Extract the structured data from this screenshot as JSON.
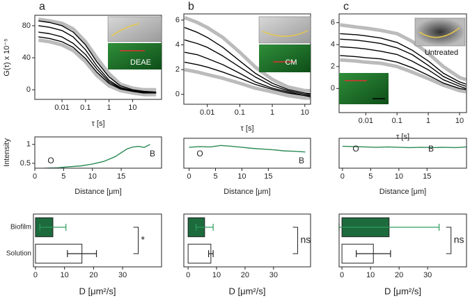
{
  "chart_data": [
    {
      "type": "line",
      "title": "a",
      "ylabel": "G(τ) x 10⁻⁵",
      "xlabel": "τ [s]",
      "inset_label": "DEAE",
      "xscale": "log",
      "x": [
        0.001,
        0.003,
        0.01,
        0.03,
        0.1,
        0.3,
        1,
        3,
        10,
        30,
        100
      ],
      "series": [
        {
          "color": "#bbbbbb",
          "values": [
            88,
            86,
            83,
            76,
            60,
            40,
            20,
            7,
            2,
            0,
            0
          ]
        },
        {
          "color": "#bbbbbb",
          "values": [
            62,
            60,
            56,
            49,
            35,
            18,
            5,
            -1,
            -4,
            -6,
            -6
          ]
        },
        {
          "color": "#000000",
          "values": [
            86,
            84,
            80,
            72,
            56,
            35,
            16,
            5,
            0,
            -2,
            -3
          ]
        },
        {
          "color": "#000000",
          "values": [
            80,
            78,
            74,
            66,
            50,
            30,
            12,
            3,
            -1,
            -3,
            -3
          ]
        },
        {
          "color": "#000000",
          "values": [
            72,
            70,
            66,
            58,
            44,
            26,
            10,
            2,
            -2,
            -4,
            -4
          ]
        },
        {
          "color": "#000000",
          "values": [
            66,
            64,
            60,
            53,
            39,
            22,
            8,
            1,
            -2,
            -4,
            -4
          ]
        }
      ],
      "xlim": [
        0.0007,
        170
      ],
      "ylim": [
        -12,
        93
      ],
      "xticks": [
        0.01,
        0.1,
        1,
        10
      ],
      "yticks": [
        0,
        40,
        80
      ]
    },
    {
      "type": "line",
      "ylabel": "Intensity",
      "xlabel": "Distance [μm]",
      "annotations": [
        "O",
        "B"
      ],
      "x": [
        0,
        2,
        4,
        6,
        8,
        10,
        12,
        14,
        15,
        16,
        17,
        18,
        19,
        20
      ],
      "series": [
        {
          "color": "#2a8a55",
          "values": [
            0.35,
            0.37,
            0.38,
            0.41,
            0.43,
            0.48,
            0.55,
            0.68,
            0.78,
            0.88,
            0.93,
            0.95,
            0.92,
            1.0
          ]
        }
      ],
      "xlim": [
        0,
        22
      ],
      "ylim": [
        0.37,
        1.2
      ],
      "xticks": [
        0,
        5,
        10,
        15
      ],
      "yticks": [
        0.5,
        1.0
      ]
    },
    {
      "type": "bar",
      "orientation": "horizontal",
      "xlabel": "D [μm²/s]",
      "annotations": [
        "*"
      ],
      "categories": [
        "Biofilm",
        "Solution"
      ],
      "values": [
        6,
        16
      ],
      "errors": [
        4.5,
        5
      ],
      "colors": [
        "#1d6b3d",
        "#ffffff"
      ],
      "error_colors": [
        "#2e9c5c",
        "#222222"
      ],
      "xlim": [
        -0.7,
        43.4
      ],
      "xticks": [
        0,
        10,
        20,
        30
      ]
    },
    {
      "type": "line",
      "title": "b",
      "xlabel": "τ [s]",
      "inset_label": "CM",
      "xscale": "log",
      "x": [
        0.002,
        0.005,
        0.01,
        0.03,
        0.1,
        0.3,
        1,
        3,
        10,
        15
      ],
      "series": [
        {
          "color": "#bbbbbb",
          "values": [
            6.2,
            5.8,
            5.4,
            4.6,
            3.4,
            2.2,
            1.2,
            0.6,
            0.3,
            0.3
          ]
        },
        {
          "color": "#bbbbbb",
          "values": [
            2.0,
            1.8,
            1.6,
            1.3,
            0.9,
            0.5,
            0.2,
            -0.1,
            -0.3,
            -0.3
          ]
        },
        {
          "color": "#000000",
          "values": [
            5.4,
            5.0,
            4.6,
            3.8,
            2.7,
            1.7,
            0.9,
            0.4,
            0.1,
            0.05
          ]
        },
        {
          "color": "#000000",
          "values": [
            4.4,
            4.1,
            3.8,
            3.1,
            2.2,
            1.4,
            0.7,
            0.3,
            0.0,
            0
          ]
        },
        {
          "color": "#000000",
          "values": [
            3.4,
            3.2,
            2.9,
            2.4,
            1.7,
            1.0,
            0.5,
            0.2,
            -0.1,
            -0.1
          ]
        },
        {
          "color": "#000000",
          "values": [
            2.6,
            2.4,
            2.2,
            1.8,
            1.3,
            0.8,
            0.4,
            0.1,
            -0.1,
            -0.2
          ]
        }
      ],
      "xlim": [
        0.0019,
        15
      ],
      "ylim": [
        -0.8,
        6.5
      ],
      "xticks": [
        0.01,
        0.1,
        1,
        10
      ],
      "yticks": [
        0,
        2,
        4,
        6
      ]
    },
    {
      "type": "line",
      "xlabel": "Distance [μm]",
      "annotations": [
        "O",
        "B"
      ],
      "x": [
        0,
        2,
        4,
        6,
        8,
        10,
        12,
        14,
        16,
        18,
        20,
        22
      ],
      "series": [
        {
          "color": "#2a8a55",
          "values": [
            0.95,
            0.97,
            0.96,
            1.0,
            0.98,
            0.95,
            0.92,
            0.9,
            0.88,
            0.85,
            0.84,
            0.82
          ]
        }
      ],
      "xlim": [
        -1,
        23
      ],
      "ylim": [
        0.37,
        1.2
      ],
      "xticks": [
        0,
        5,
        10,
        15
      ]
    },
    {
      "type": "bar",
      "orientation": "horizontal",
      "xlabel": "D [μm²/s]",
      "annotations": [
        "ns"
      ],
      "categories": [
        null,
        null
      ],
      "values": [
        5.8,
        8
      ],
      "errors": [
        3,
        0.8
      ],
      "colors": [
        "#1d6b3d",
        "#ffffff"
      ],
      "error_colors": [
        "#2e9c5c",
        "#222222"
      ],
      "xlim": [
        -1.5,
        43
      ],
      "xticks": [
        0,
        10,
        20,
        30
      ]
    },
    {
      "type": "line",
      "title": "c",
      "xlabel": "τ [s]",
      "inset_label": "Untreated",
      "xscale": "log",
      "x": [
        0.0015,
        0.005,
        0.01,
        0.03,
        0.1,
        0.3,
        1,
        3,
        10,
        16
      ],
      "series": [
        {
          "color": "#bbbbbb",
          "values": [
            5.8,
            5.6,
            5.5,
            5.3,
            5.0,
            4.3,
            3.2,
            2.0,
            1.0,
            0.8
          ]
        },
        {
          "color": "#bbbbbb",
          "values": [
            2.6,
            2.5,
            2.4,
            2.3,
            2.0,
            1.5,
            0.9,
            0.3,
            -0.2,
            -0.3
          ]
        },
        {
          "color": "#000000",
          "values": [
            5.0,
            4.9,
            4.8,
            4.6,
            4.2,
            3.5,
            2.5,
            1.4,
            0.6,
            0.4
          ]
        },
        {
          "color": "#000000",
          "values": [
            4.5,
            4.4,
            4.3,
            4.1,
            3.7,
            3.1,
            2.1,
            1.1,
            0.4,
            0.2
          ]
        },
        {
          "color": "#000000",
          "values": [
            3.8,
            3.7,
            3.6,
            3.4,
            3.1,
            2.5,
            1.7,
            0.8,
            0.2,
            0
          ]
        },
        {
          "color": "#000000",
          "values": [
            3.0,
            2.9,
            2.8,
            2.7,
            2.4,
            1.9,
            1.2,
            0.5,
            0,
            -0.1
          ]
        }
      ],
      "xlim": [
        0.0014,
        16.7
      ],
      "ylim": [
        -2.2,
        6.8
      ],
      "xticks": [
        0.01,
        0.1,
        1,
        10
      ],
      "yticks": [
        0,
        2,
        4,
        6
      ]
    },
    {
      "type": "line",
      "xlabel": "Distance [μm]",
      "annotations": [
        "O",
        "B"
      ],
      "x": [
        0,
        2,
        4,
        6,
        8,
        10,
        12,
        14,
        16,
        18,
        20,
        22
      ],
      "series": [
        {
          "color": "#2a8a55",
          "values": [
            0.98,
            0.97,
            0.96,
            0.95,
            0.96,
            0.95,
            0.94,
            0.95,
            0.94,
            0.95,
            0.94,
            0.96
          ]
        }
      ],
      "xlim": [
        -0.6,
        22
      ],
      "ylim": [
        0.37,
        1.2
      ],
      "xticks": [
        0,
        5,
        10,
        15
      ]
    },
    {
      "type": "bar",
      "orientation": "horizontal",
      "xlabel": "D [μm²/s]",
      "annotations": [
        "ns"
      ],
      "categories": [
        null,
        null
      ],
      "values": [
        16.5,
        11
      ],
      "errors": [
        17.5,
        6
      ],
      "colors": [
        "#1d6b3d",
        "#ffffff"
      ],
      "error_colors": [
        "#2e9c5c",
        "#222222"
      ],
      "xlim": [
        -1,
        43.6
      ],
      "xticks": [
        0,
        10,
        20,
        30
      ]
    }
  ]
}
